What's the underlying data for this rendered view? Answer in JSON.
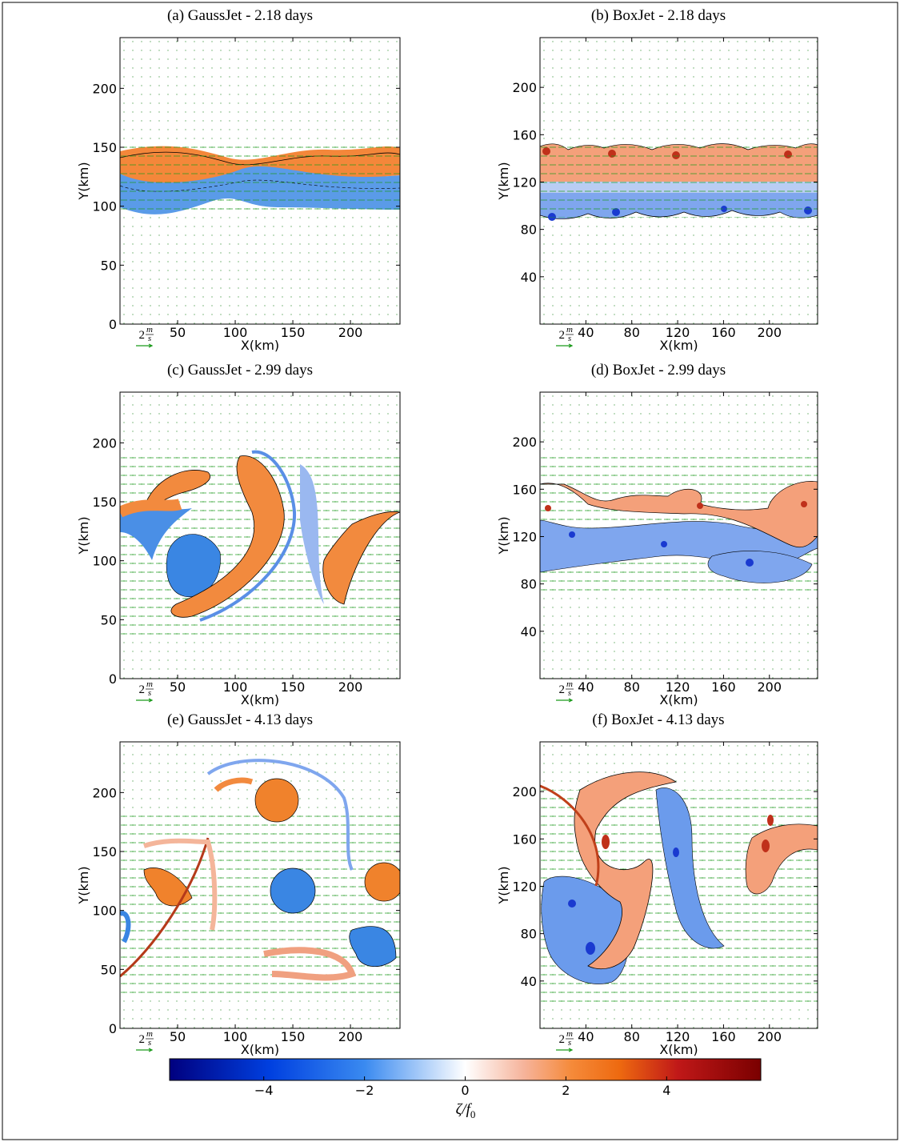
{
  "chart_data": [
    {
      "type": "heatmap",
      "title": "(a) GaussJet - 2.18 days",
      "x_label": "X(km)",
      "y_label": "Y(km)",
      "xlim": [
        0,
        243
      ],
      "ylim": [
        0,
        243
      ],
      "xticks": [
        50,
        100,
        150,
        200
      ],
      "yticks": [
        0,
        50,
        100,
        150,
        200
      ],
      "quiver_key": {
        "value": "2",
        "numerator": "m",
        "denominator": "s"
      }
    },
    {
      "type": "heatmap",
      "title": "(b) BoxJet - 2.18 days",
      "x_label": "X(km)",
      "y_label": "Y(km)",
      "xlim": [
        0,
        242
      ],
      "ylim": [
        0,
        242
      ],
      "xticks": [
        40,
        80,
        120,
        160,
        200
      ],
      "yticks": [
        40,
        80,
        120,
        160,
        200
      ],
      "quiver_key": {
        "value": "2",
        "numerator": "m",
        "denominator": "s"
      }
    },
    {
      "type": "heatmap",
      "title": "(c) GaussJet - 2.99 days",
      "x_label": "X(km)",
      "y_label": "Y(km)",
      "xlim": [
        0,
        243
      ],
      "ylim": [
        0,
        243
      ],
      "xticks": [
        50,
        100,
        150,
        200
      ],
      "yticks": [
        0,
        50,
        100,
        150,
        200
      ],
      "quiver_key": {
        "value": "2",
        "numerator": "m",
        "denominator": "s"
      }
    },
    {
      "type": "heatmap",
      "title": "(d) BoxJet - 2.99 days",
      "x_label": "X(km)",
      "y_label": "Y(km)",
      "xlim": [
        0,
        242
      ],
      "ylim": [
        0,
        242
      ],
      "xticks": [
        40,
        80,
        120,
        160,
        200
      ],
      "yticks": [
        40,
        80,
        120,
        160,
        200
      ],
      "quiver_key": {
        "value": "2",
        "numerator": "m",
        "denominator": "s"
      }
    },
    {
      "type": "heatmap",
      "title": "(e) GaussJet - 4.13 days",
      "x_label": "X(km)",
      "y_label": "Y(km)",
      "xlim": [
        0,
        243
      ],
      "ylim": [
        0,
        243
      ],
      "xticks": [
        50,
        100,
        150,
        200
      ],
      "yticks": [
        0,
        50,
        100,
        150,
        200
      ],
      "quiver_key": {
        "value": "2",
        "numerator": "m",
        "denominator": "s"
      }
    },
    {
      "type": "heatmap",
      "title": "(f) BoxJet - 4.13 days",
      "x_label": "X(km)",
      "y_label": "Y(km)",
      "xlim": [
        0,
        242
      ],
      "ylim": [
        0,
        242
      ],
      "xticks": [
        40,
        80,
        120,
        160,
        200
      ],
      "yticks": [
        40,
        80,
        120,
        160,
        200
      ],
      "quiver_key": {
        "value": "2",
        "numerator": "m",
        "denominator": "s"
      }
    }
  ],
  "colorbar": {
    "label_main": "ζ/f",
    "label_sub": "0",
    "clim": [
      -5.87,
      5.87
    ],
    "ticks": [
      {
        "value": -4,
        "label": "−4"
      },
      {
        "value": -2,
        "label": "−2"
      },
      0,
      2,
      4
    ]
  }
}
